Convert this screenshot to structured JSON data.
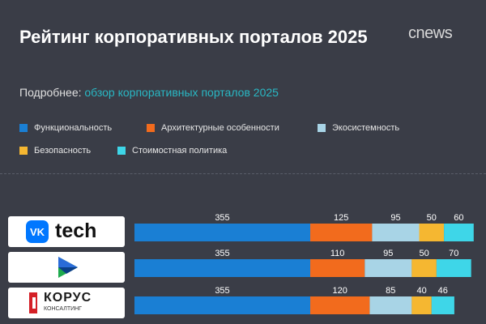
{
  "header": {
    "title": "Рейтинг корпоративных порталов 2025",
    "logo_text": "cnews",
    "subtitle_prefix": "Подробнее:",
    "subtitle_link": "обзор корпоративных порталов 2025"
  },
  "brands": [
    {
      "label": "tech",
      "icon": "vk-logo-icon"
    },
    {
      "label": "",
      "icon": "play-triangle-logo-icon"
    },
    {
      "label": "КОРУС",
      "sublabel": "КОНСАЛТИНГ",
      "icon": "korus-logo-icon"
    }
  ],
  "chart_data": {
    "type": "bar",
    "orientation": "horizontal",
    "stacked": true,
    "categories": [
      "tech",
      "",
      "КОРУС"
    ],
    "series": [
      {
        "name": "Функциональность",
        "color": "#1a7fd4",
        "values": [
          355,
          355,
          355
        ]
      },
      {
        "name": "Архитектурные особенности",
        "color": "#f26b1d",
        "values": [
          125,
          110,
          120
        ]
      },
      {
        "name": "Экосистемность",
        "color": "#a8d4e6",
        "values": [
          95,
          95,
          85
        ]
      },
      {
        "name": "Безопасность",
        "color": "#f5b731",
        "values": [
          50,
          50,
          40
        ]
      },
      {
        "name": "Стоимостная политика",
        "color": "#3ed6e8",
        "values": [
          60,
          70,
          46
        ]
      }
    ],
    "legend_position": "top",
    "grid": false
  }
}
